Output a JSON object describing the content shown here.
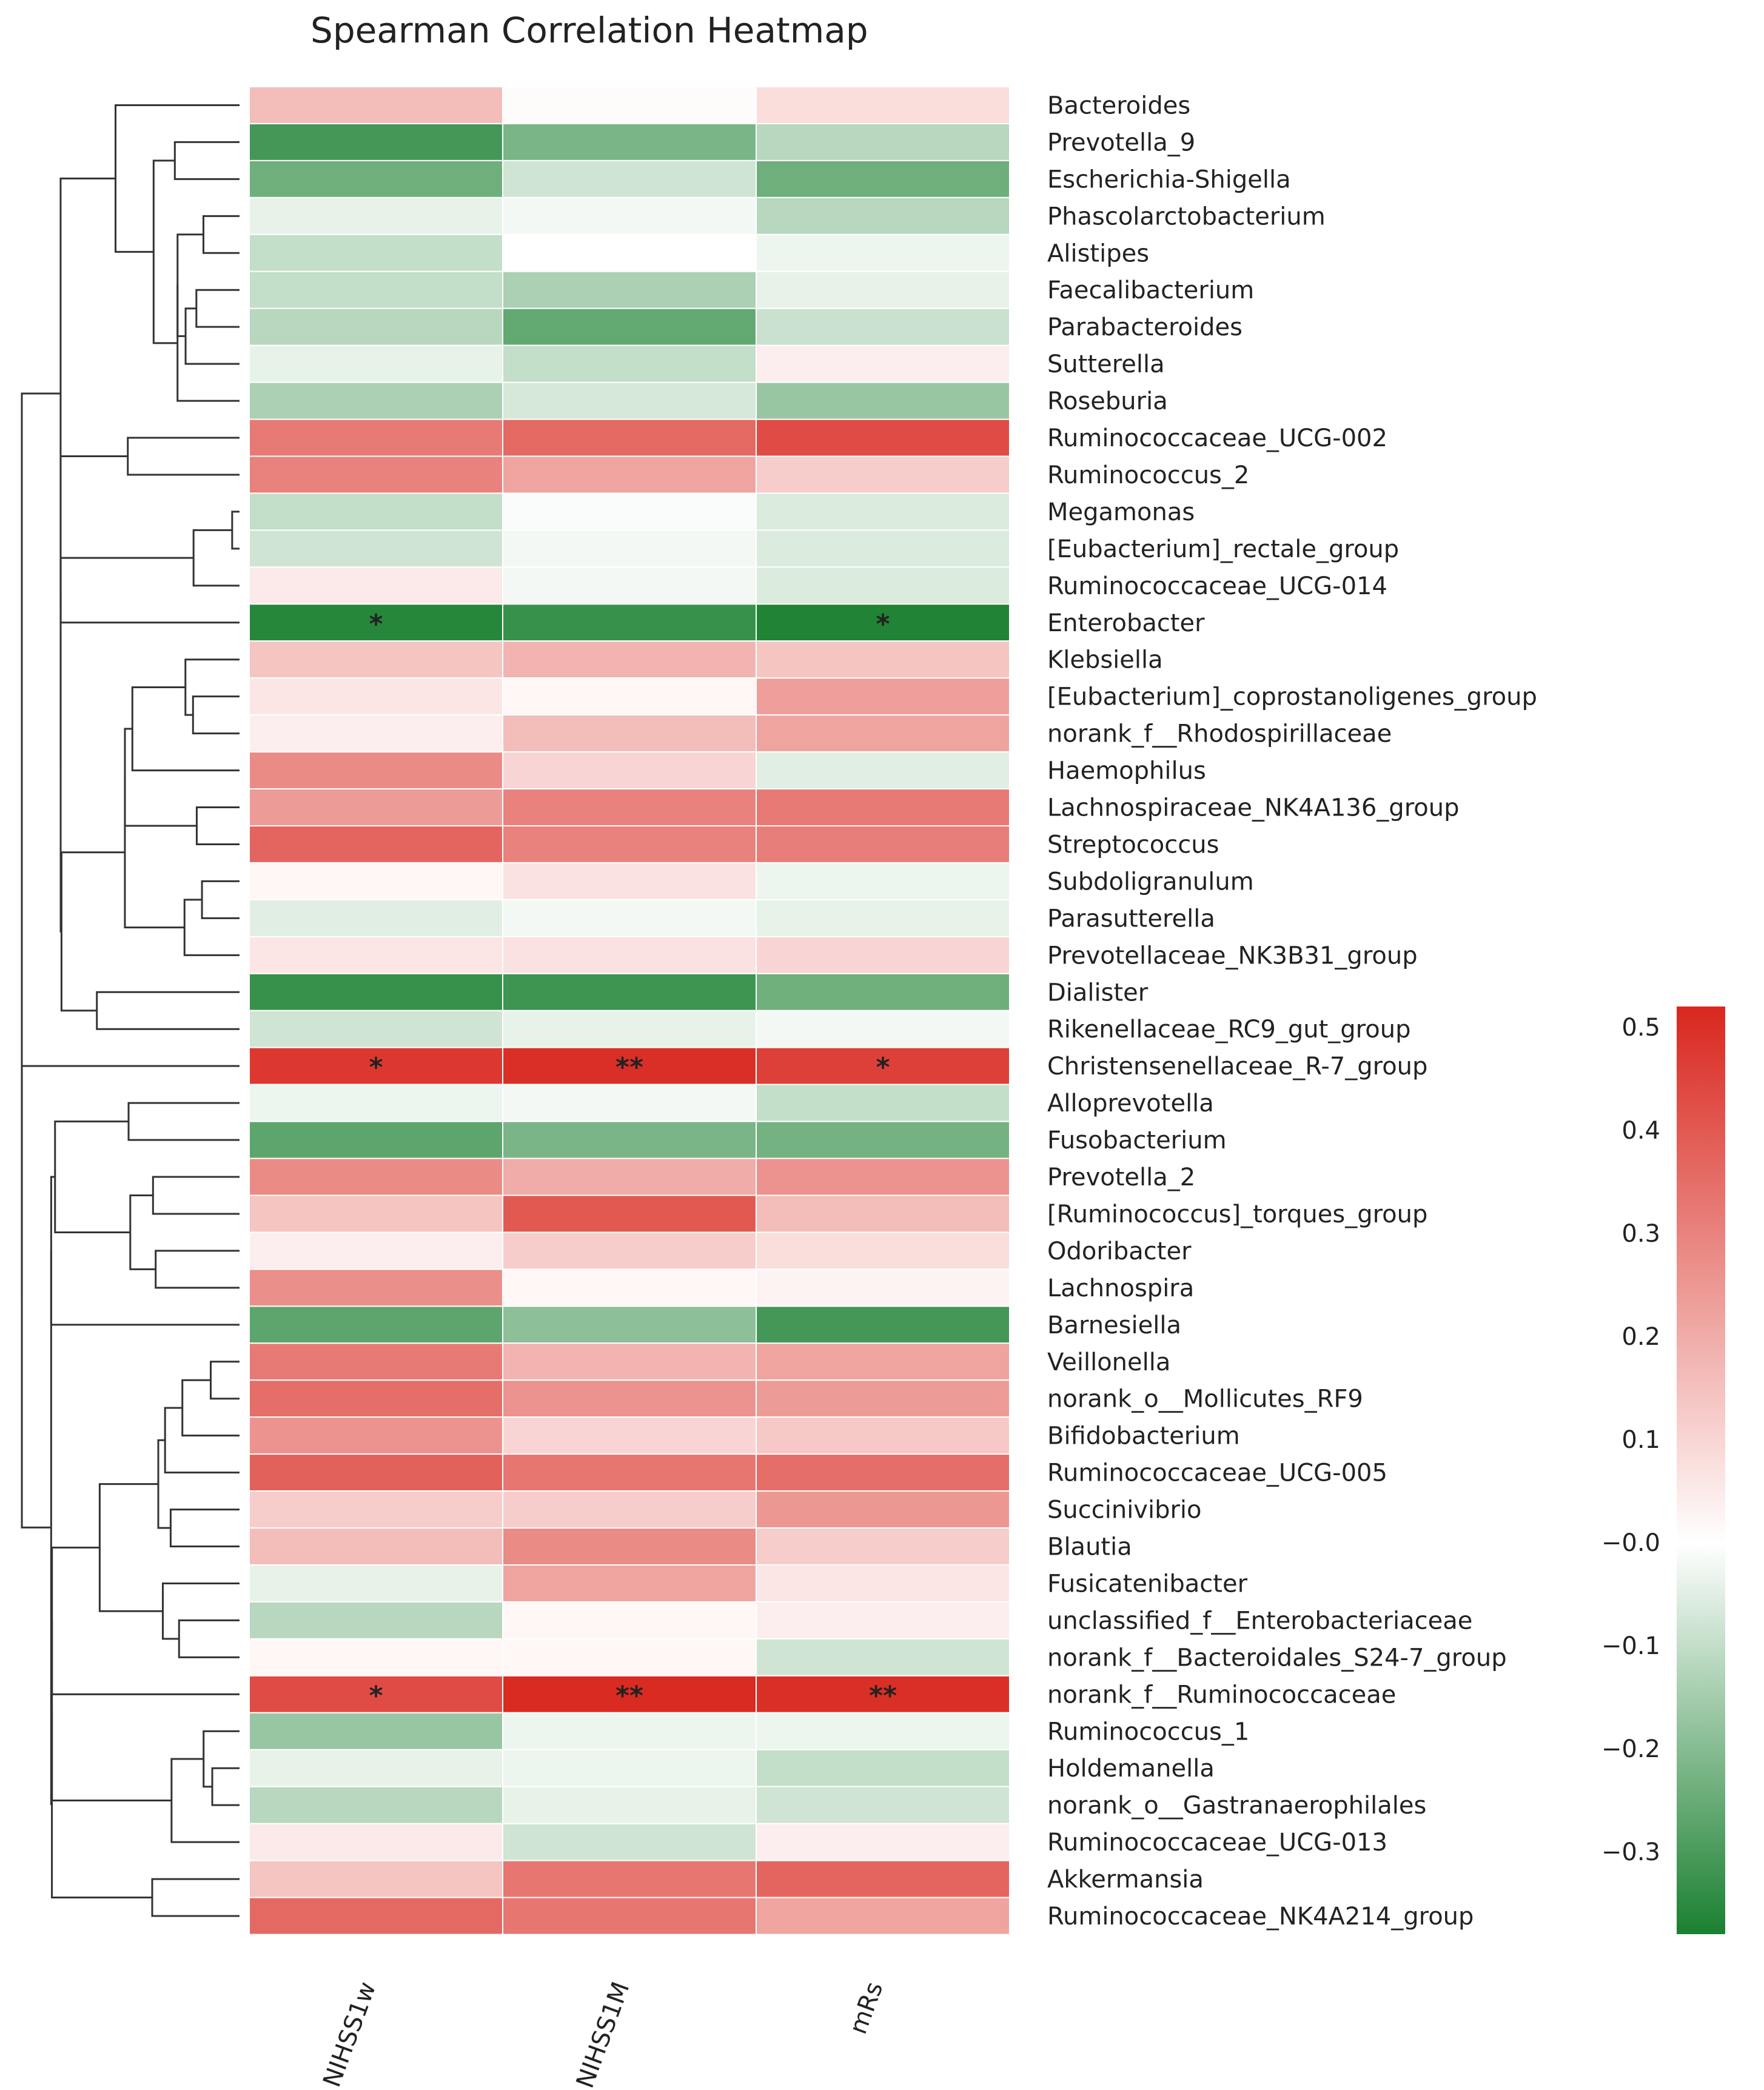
{
  "chart_data": {
    "type": "heatmap",
    "title": "Spearman Correlation Heatmap",
    "columns": [
      "NIHSS1w",
      "NIHSS1M",
      "mRs"
    ],
    "rows": [
      "Bacteroides",
      "Prevotella_9",
      "Escherichia-Shigella",
      "Phascolarctobacterium",
      "Alistipes",
      "Faecalibacterium",
      "Parabacteroides",
      "Sutterella",
      "Roseburia",
      "Ruminococcaceae_UCG-002",
      "Ruminococcus_2",
      "Megamonas",
      "[Eubacterium]_rectale_group",
      "Ruminococcaceae_UCG-014",
      "Enterobacter",
      "Klebsiella",
      "[Eubacterium]_coprostanoligenes_group",
      "norank_f__Rhodospirillaceae",
      "Haemophilus",
      "Lachnospiraceae_NK4A136_group",
      "Streptococcus",
      "Subdoligranulum",
      "Parasutterella",
      "Prevotellaceae_NK3B31_group",
      "Dialister",
      "Rikenellaceae_RC9_gut_group",
      "Christensenellaceae_R-7_group",
      "Alloprevotella",
      "Fusobacterium",
      "Prevotella_2",
      "[Ruminococcus]_torques_group",
      "Odoribacter",
      "Lachnospira",
      "Barnesiella",
      "Veillonella",
      "norank_o__Mollicutes_RF9",
      "Bifidobacterium",
      "Ruminococcaceae_UCG-005",
      "Succinivibrio",
      "Blautia",
      "Fusicatenibacter",
      "unclassified_f__Enterobacteriaceae",
      "norank_f__Bacteroidales_S24-7_group",
      "norank_f__Ruminococcaceae",
      "Ruminococcus_1",
      "Holdemanella",
      "norank_o__Gastranaerophilales",
      "Ruminococcaceae_UCG-013",
      "Akkermansia",
      "Ruminococcaceae_NK4A214_group"
    ],
    "values": [
      [
        0.16,
        0.01,
        0.08
      ],
      [
        -0.31,
        -0.22,
        -0.12
      ],
      [
        -0.24,
        -0.08,
        -0.24
      ],
      [
        -0.04,
        -0.02,
        -0.12
      ],
      [
        -0.1,
        0.0,
        -0.03
      ],
      [
        -0.1,
        -0.14,
        -0.04
      ],
      [
        -0.12,
        -0.26,
        -0.09
      ],
      [
        -0.04,
        -0.1,
        0.04
      ],
      [
        -0.14,
        -0.07,
        -0.17
      ],
      [
        0.32,
        0.36,
        0.43
      ],
      [
        0.3,
        0.22,
        0.12
      ],
      [
        -0.1,
        -0.01,
        -0.06
      ],
      [
        -0.08,
        -0.02,
        -0.06
      ],
      [
        0.05,
        -0.02,
        -0.06
      ],
      [
        -0.36,
        -0.33,
        -0.37
      ],
      [
        0.14,
        0.18,
        0.14
      ],
      [
        0.06,
        0.02,
        0.23
      ],
      [
        0.04,
        0.16,
        0.22
      ],
      [
        0.28,
        0.1,
        -0.05
      ],
      [
        0.24,
        0.3,
        0.32
      ],
      [
        0.37,
        0.3,
        0.31
      ],
      [
        0.02,
        0.07,
        -0.03
      ],
      [
        -0.05,
        -0.02,
        -0.04
      ],
      [
        0.06,
        0.07,
        0.1
      ],
      [
        -0.33,
        -0.32,
        -0.24
      ],
      [
        -0.08,
        -0.04,
        -0.02
      ],
      [
        0.48,
        0.5,
        0.46
      ],
      [
        -0.03,
        -0.02,
        -0.1
      ],
      [
        -0.27,
        -0.22,
        -0.23
      ],
      [
        0.28,
        0.2,
        0.26
      ],
      [
        0.14,
        0.4,
        0.16
      ],
      [
        0.04,
        0.12,
        0.08
      ],
      [
        0.27,
        0.02,
        0.03
      ],
      [
        -0.27,
        -0.19,
        -0.31
      ],
      [
        0.32,
        0.18,
        0.22
      ],
      [
        0.35,
        0.26,
        0.24
      ],
      [
        0.26,
        0.1,
        0.13
      ],
      [
        0.38,
        0.33,
        0.35
      ],
      [
        0.12,
        0.12,
        0.25
      ],
      [
        0.16,
        0.28,
        0.12
      ],
      [
        -0.04,
        0.22,
        0.06
      ],
      [
        -0.12,
        0.02,
        0.04
      ],
      [
        0.02,
        0.02,
        -0.08
      ],
      [
        0.43,
        0.51,
        0.5
      ],
      [
        -0.17,
        -0.03,
        -0.03
      ],
      [
        -0.04,
        -0.03,
        -0.1
      ],
      [
        -0.12,
        -0.04,
        -0.08
      ],
      [
        0.05,
        -0.08,
        0.04
      ],
      [
        0.14,
        0.33,
        0.37
      ],
      [
        0.36,
        0.33,
        0.22
      ]
    ],
    "significance": [
      [
        "",
        "",
        ""
      ],
      [
        "",
        "",
        ""
      ],
      [
        "",
        "",
        ""
      ],
      [
        "",
        "",
        ""
      ],
      [
        "",
        "",
        ""
      ],
      [
        "",
        "",
        ""
      ],
      [
        "",
        "",
        ""
      ],
      [
        "",
        "",
        ""
      ],
      [
        "",
        "",
        ""
      ],
      [
        "",
        "",
        ""
      ],
      [
        "",
        "",
        ""
      ],
      [
        "",
        "",
        ""
      ],
      [
        "",
        "",
        ""
      ],
      [
        "",
        "",
        ""
      ],
      [
        "*",
        "",
        "*"
      ],
      [
        "",
        "",
        ""
      ],
      [
        "",
        "",
        ""
      ],
      [
        "",
        "",
        ""
      ],
      [
        "",
        "",
        ""
      ],
      [
        "",
        "",
        ""
      ],
      [
        "",
        "",
        ""
      ],
      [
        "",
        "",
        ""
      ],
      [
        "",
        "",
        ""
      ],
      [
        "",
        "",
        ""
      ],
      [
        "",
        "",
        ""
      ],
      [
        "",
        "",
        ""
      ],
      [
        "*",
        "**",
        "*"
      ],
      [
        "",
        "",
        ""
      ],
      [
        "",
        "",
        ""
      ],
      [
        "",
        "",
        ""
      ],
      [
        "",
        "",
        ""
      ],
      [
        "",
        "",
        ""
      ],
      [
        "",
        "",
        ""
      ],
      [
        "",
        "",
        ""
      ],
      [
        "",
        "",
        ""
      ],
      [
        "",
        "",
        ""
      ],
      [
        "",
        "",
        ""
      ],
      [
        "",
        "",
        ""
      ],
      [
        "",
        "",
        ""
      ],
      [
        "",
        "",
        ""
      ],
      [
        "",
        "",
        ""
      ],
      [
        "",
        "",
        ""
      ],
      [
        "",
        "",
        ""
      ],
      [
        "*",
        "**",
        "**"
      ],
      [
        "",
        "",
        ""
      ],
      [
        "",
        "",
        ""
      ],
      [
        "",
        "",
        ""
      ],
      [
        "",
        "",
        ""
      ],
      [
        "",
        "",
        ""
      ],
      [
        "",
        "",
        ""
      ]
    ],
    "colorbar": {
      "range": [
        -0.38,
        0.52
      ],
      "ticks": [
        0.5,
        0.4,
        0.3,
        0.2,
        0.1,
        -0.0,
        -0.1,
        -0.2,
        -0.3
      ],
      "tick_labels": [
        "0.5",
        "0.4",
        "0.3",
        "0.2",
        "0.1",
        "−0.0",
        "−0.1",
        "−0.2",
        "−0.3"
      ],
      "colors": {
        "high": "#d9271e",
        "mid": "#ffffff",
        "low": "#1a8030"
      }
    },
    "dendrogram": "row clustering dendrogram shown on left"
  }
}
